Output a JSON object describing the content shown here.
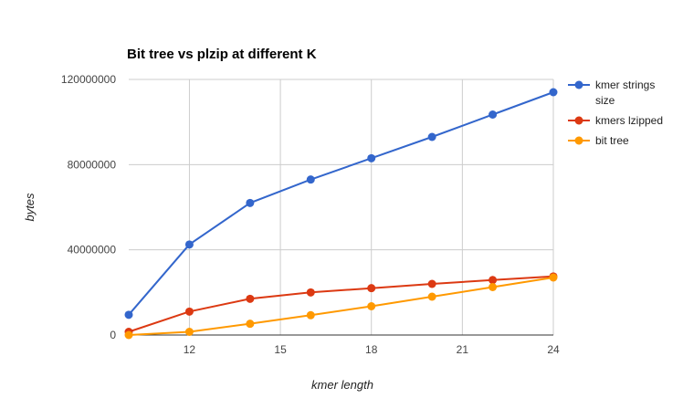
{
  "chart_data": {
    "type": "line",
    "title": "Bit tree vs plzip at different K",
    "xlabel": "kmer length",
    "ylabel": "bytes",
    "xlim": [
      10,
      24
    ],
    "ylim": [
      0,
      120000000
    ],
    "x_ticks": [
      12,
      15,
      18,
      21,
      24
    ],
    "y_ticks": [
      0,
      40000000,
      80000000,
      120000000
    ],
    "y_tick_labels": [
      "0",
      "40000000",
      "80000000",
      "120000000"
    ],
    "grid": true,
    "legend_position": "right",
    "x": [
      10,
      12,
      14,
      16,
      18,
      20,
      22,
      24
    ],
    "series": [
      {
        "name": "kmer strings size",
        "legend_lines": [
          "kmer strings",
          "size"
        ],
        "color": "#3366cc",
        "values": [
          9500000,
          42500000,
          62000000,
          73000000,
          83000000,
          93000000,
          103500000,
          114000000
        ]
      },
      {
        "name": "kmers lzipped",
        "legend_lines": [
          "kmers lzipped"
        ],
        "color": "#dc3912",
        "values": [
          1500000,
          11000000,
          17000000,
          20000000,
          22000000,
          24000000,
          25800000,
          27500000
        ]
      },
      {
        "name": "bit tree",
        "legend_lines": [
          "bit tree"
        ],
        "color": "#ff9900",
        "values": [
          0,
          1500000,
          5300000,
          9300000,
          13500000,
          18000000,
          22500000,
          27000000
        ]
      }
    ]
  }
}
